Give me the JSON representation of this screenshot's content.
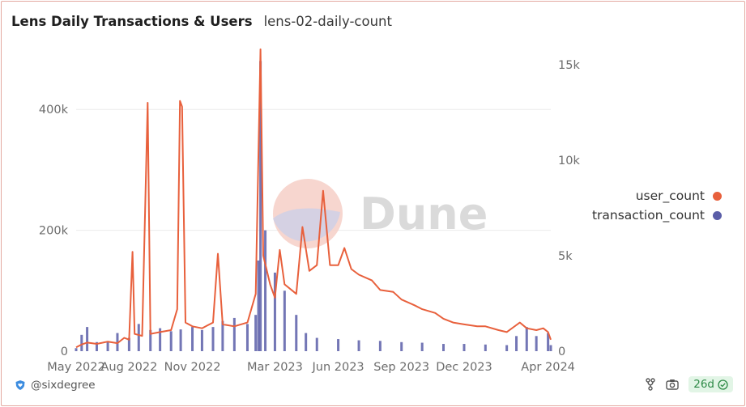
{
  "header": {
    "title": "Lens Daily Transactions & Users",
    "subtitle": "lens-02-daily-count"
  },
  "watermark": "Dune",
  "footer": {
    "author": "@sixdegree",
    "age_badge": "26d"
  },
  "colors": {
    "user_count": "#e8603c",
    "transaction_count": "#5b5ea8",
    "grid": "#ececec"
  },
  "icons": {
    "author": "heart-shield-icon",
    "fork": "fork-icon",
    "camera": "camera-icon",
    "check": "check-circle-icon"
  },
  "chart_data": {
    "type": "bar+line",
    "x_ticks": [
      "May 2022",
      "Aug 2022",
      "Nov 2022",
      "Mar 2023",
      "Jun 2023",
      "Sep 2023",
      "Dec 2023",
      "Apr 2024"
    ],
    "left_axis": {
      "ticks": [
        "0",
        "200k",
        "400k"
      ],
      "range": [
        0,
        490000
      ],
      "series": "transaction_count"
    },
    "right_axis": {
      "ticks": [
        "0",
        "5k",
        "10k",
        "15k"
      ],
      "range": [
        0,
        15500
      ],
      "series": "user_count"
    },
    "legend": {
      "position": "right"
    },
    "series": [
      {
        "name": "user_count",
        "type": "line",
        "axis": "right",
        "points": [
          [
            "2022-05-16",
            200
          ],
          [
            "2022-05-24",
            350
          ],
          [
            "2022-06-01",
            450
          ],
          [
            "2022-06-15",
            380
          ],
          [
            "2022-07-01",
            500
          ],
          [
            "2022-07-15",
            420
          ],
          [
            "2022-07-25",
            700
          ],
          [
            "2022-08-01",
            600
          ],
          [
            "2022-08-06",
            5200
          ],
          [
            "2022-08-09",
            900
          ],
          [
            "2022-08-20",
            800
          ],
          [
            "2022-08-28",
            13000
          ],
          [
            "2022-09-01",
            900
          ],
          [
            "2022-09-15",
            1000
          ],
          [
            "2022-10-01",
            1100
          ],
          [
            "2022-10-10",
            2200
          ],
          [
            "2022-10-14",
            13100
          ],
          [
            "2022-10-17",
            12800
          ],
          [
            "2022-10-22",
            1500
          ],
          [
            "2022-11-01",
            1300
          ],
          [
            "2022-11-15",
            1200
          ],
          [
            "2022-12-01",
            1500
          ],
          [
            "2022-12-08",
            5100
          ],
          [
            "2022-12-15",
            1400
          ],
          [
            "2023-01-01",
            1300
          ],
          [
            "2023-01-20",
            1500
          ],
          [
            "2023-02-01",
            3000
          ],
          [
            "2023-02-08",
            15800
          ],
          [
            "2023-02-12",
            5000
          ],
          [
            "2023-02-22",
            3500
          ],
          [
            "2023-03-01",
            2800
          ],
          [
            "2023-03-08",
            5300
          ],
          [
            "2023-03-15",
            3500
          ],
          [
            "2023-04-01",
            3000
          ],
          [
            "2023-04-10",
            6500
          ],
          [
            "2023-04-20",
            4200
          ],
          [
            "2023-05-01",
            4500
          ],
          [
            "2023-05-10",
            8400
          ],
          [
            "2023-05-20",
            4500
          ],
          [
            "2023-06-01",
            4500
          ],
          [
            "2023-06-10",
            5400
          ],
          [
            "2023-06-20",
            4300
          ],
          [
            "2023-07-01",
            4000
          ],
          [
            "2023-07-20",
            3700
          ],
          [
            "2023-08-01",
            3200
          ],
          [
            "2023-08-20",
            3100
          ],
          [
            "2023-09-01",
            2700
          ],
          [
            "2023-09-20",
            2400
          ],
          [
            "2023-10-01",
            2200
          ],
          [
            "2023-10-20",
            2000
          ],
          [
            "2023-11-01",
            1700
          ],
          [
            "2023-11-15",
            1500
          ],
          [
            "2023-12-01",
            1400
          ],
          [
            "2023-12-20",
            1300
          ],
          [
            "2024-01-01",
            1300
          ],
          [
            "2024-01-20",
            1100
          ],
          [
            "2024-02-01",
            1000
          ],
          [
            "2024-02-20",
            1500
          ],
          [
            "2024-03-01",
            1200
          ],
          [
            "2024-03-15",
            1100
          ],
          [
            "2024-03-25",
            1200
          ],
          [
            "2024-04-01",
            1000
          ],
          [
            "2024-04-05",
            600
          ]
        ]
      },
      {
        "name": "transaction_count",
        "type": "bar",
        "axis": "left",
        "points": [
          [
            "2022-05-16",
            5000
          ],
          [
            "2022-05-24",
            27000
          ],
          [
            "2022-06-01",
            40000
          ],
          [
            "2022-06-15",
            15000
          ],
          [
            "2022-07-01",
            15000
          ],
          [
            "2022-07-15",
            30000
          ],
          [
            "2022-08-01",
            22000
          ],
          [
            "2022-08-15",
            45000
          ],
          [
            "2022-09-01",
            35000
          ],
          [
            "2022-09-15",
            38000
          ],
          [
            "2022-10-01",
            33000
          ],
          [
            "2022-10-15",
            36000
          ],
          [
            "2022-11-01",
            40000
          ],
          [
            "2022-11-15",
            35000
          ],
          [
            "2022-12-01",
            40000
          ],
          [
            "2022-12-15",
            50000
          ],
          [
            "2023-01-01",
            55000
          ],
          [
            "2023-01-20",
            45000
          ],
          [
            "2023-02-01",
            60000
          ],
          [
            "2023-02-05",
            150000
          ],
          [
            "2023-02-08",
            480000
          ],
          [
            "2023-02-15",
            200000
          ],
          [
            "2023-03-01",
            130000
          ],
          [
            "2023-03-15",
            100000
          ],
          [
            "2023-04-01",
            60000
          ],
          [
            "2023-04-15",
            30000
          ],
          [
            "2023-05-01",
            22000
          ],
          [
            "2023-06-01",
            20000
          ],
          [
            "2023-07-01",
            18000
          ],
          [
            "2023-08-01",
            17000
          ],
          [
            "2023-09-01",
            15000
          ],
          [
            "2023-10-01",
            14000
          ],
          [
            "2023-11-01",
            12000
          ],
          [
            "2023-12-01",
            12000
          ],
          [
            "2024-01-01",
            11000
          ],
          [
            "2024-02-01",
            10000
          ],
          [
            "2024-02-15",
            25000
          ],
          [
            "2024-03-01",
            40000
          ],
          [
            "2024-03-15",
            25000
          ],
          [
            "2024-04-01",
            30000
          ],
          [
            "2024-04-05",
            10000
          ]
        ]
      }
    ]
  }
}
